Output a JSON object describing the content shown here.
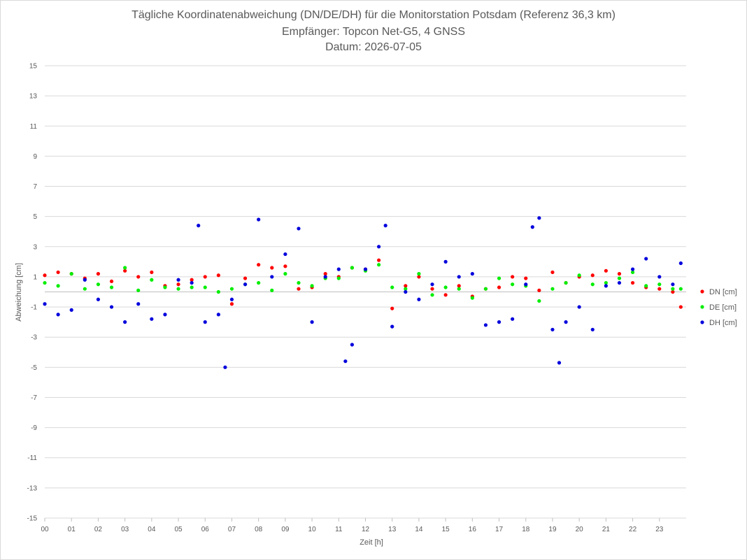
{
  "chart_data": {
    "type": "scatter",
    "title": "Tägliche Koordinatenabweichung (DN/DE/DH) für die Monitorstation Potsdam (Referenz 36,3 km)",
    "subtitle": "Empfänger: Topcon Net-G5, 4 GNSS",
    "date_line": "Datum: 2026-07-05",
    "xlabel": "Zeit [h]",
    "ylabel": "Abweichung [cm]",
    "xlim": [
      0,
      24
    ],
    "ylim": [
      -15,
      15
    ],
    "x_ticks": [
      0,
      1,
      2,
      3,
      4,
      5,
      6,
      7,
      8,
      9,
      10,
      11,
      12,
      13,
      14,
      15,
      16,
      17,
      18,
      19,
      20,
      21,
      22,
      23
    ],
    "x_tick_labels": [
      "00",
      "01",
      "02",
      "03",
      "04",
      "05",
      "06",
      "07",
      "08",
      "09",
      "10",
      "11",
      "12",
      "13",
      "14",
      "15",
      "16",
      "17",
      "18",
      "19",
      "20",
      "21",
      "22",
      "23"
    ],
    "y_ticks": [
      15,
      13,
      11,
      9,
      7,
      5,
      3,
      1,
      -1,
      -3,
      -5,
      -7,
      -9,
      -11,
      -13,
      -15
    ],
    "y_tick_labels": [
      "15",
      "13",
      "11",
      "9",
      "7",
      "5",
      "3",
      "1",
      "-1",
      "-3",
      "-5",
      "-7",
      "-9",
      "-11",
      "-13",
      "-15"
    ],
    "grid": "horizontal",
    "legend_position": "right",
    "series": [
      {
        "name": "DN [cm]",
        "color": "#ff0000",
        "x": [
          0.0,
          0.5,
          1.0,
          1.5,
          2.0,
          2.5,
          3.0,
          3.5,
          4.0,
          4.5,
          5.0,
          5.5,
          6.0,
          6.5,
          7.0,
          7.5,
          8.0,
          8.5,
          9.0,
          9.5,
          10.0,
          10.5,
          11.0,
          11.5,
          12.0,
          12.5,
          13.0,
          13.5,
          14.0,
          14.5,
          15.0,
          15.5,
          16.0,
          16.5,
          17.0,
          17.5,
          18.0,
          18.5,
          19.0,
          19.5,
          20.0,
          20.5,
          21.0,
          21.5,
          22.0,
          22.5,
          23.0,
          23.5,
          23.8
        ],
        "y": [
          1.1,
          1.3,
          1.2,
          0.9,
          1.2,
          0.7,
          1.4,
          1.0,
          1.3,
          0.4,
          0.5,
          0.8,
          1.0,
          1.1,
          -0.8,
          0.9,
          1.8,
          1.6,
          1.7,
          0.2,
          0.3,
          1.2,
          1.0,
          1.6,
          1.5,
          2.1,
          -1.1,
          0.4,
          1.0,
          0.2,
          -0.2,
          0.4,
          -0.3,
          0.2,
          0.3,
          1.0,
          0.9,
          0.1,
          1.3,
          0.6,
          1.0,
          1.1,
          1.4,
          1.2,
          0.6,
          0.3,
          0.2,
          0.0,
          -1.0
        ]
      },
      {
        "name": "DE [cm]",
        "color": "#00ee00",
        "x": [
          0.0,
          0.5,
          1.0,
          1.5,
          2.0,
          2.5,
          3.0,
          3.5,
          4.0,
          4.5,
          5.0,
          5.5,
          6.0,
          6.5,
          7.0,
          7.5,
          8.0,
          8.5,
          9.0,
          9.5,
          10.0,
          10.5,
          11.0,
          11.5,
          12.0,
          12.5,
          13.0,
          13.5,
          14.0,
          14.5,
          15.0,
          15.5,
          16.0,
          16.5,
          17.0,
          17.5,
          18.0,
          18.5,
          19.0,
          19.5,
          20.0,
          20.5,
          21.0,
          21.5,
          22.0,
          22.5,
          23.0,
          23.5,
          23.8
        ],
        "y": [
          0.6,
          0.4,
          1.2,
          0.2,
          0.5,
          0.3,
          1.6,
          0.1,
          0.8,
          0.3,
          0.2,
          0.3,
          0.3,
          0.0,
          0.2,
          0.5,
          0.6,
          0.1,
          1.2,
          0.6,
          0.4,
          0.9,
          0.9,
          1.6,
          1.4,
          1.8,
          0.3,
          0.2,
          1.2,
          -0.2,
          0.3,
          0.2,
          -0.4,
          0.2,
          0.9,
          0.5,
          0.4,
          -0.6,
          0.2,
          0.6,
          1.1,
          0.5,
          0.6,
          0.9,
          1.3,
          0.4,
          0.5,
          0.2,
          0.2
        ]
      },
      {
        "name": "DH [cm]",
        "color": "#0000dd",
        "x": [
          0.0,
          0.5,
          1.0,
          1.5,
          2.0,
          2.5,
          3.0,
          3.5,
          4.0,
          4.5,
          5.0,
          5.5,
          5.75,
          6.0,
          6.5,
          6.75,
          7.0,
          7.5,
          8.0,
          8.5,
          9.0,
          9.5,
          10.0,
          10.5,
          11.0,
          11.25,
          11.5,
          12.0,
          12.5,
          12.75,
          13.0,
          13.5,
          14.0,
          14.5,
          15.0,
          15.5,
          16.0,
          16.5,
          17.0,
          17.5,
          18.0,
          18.25,
          18.5,
          19.0,
          19.25,
          19.5,
          20.0,
          20.5,
          21.0,
          21.5,
          22.0,
          22.5,
          23.0,
          23.5,
          23.8
        ],
        "y": [
          -0.8,
          -1.5,
          -1.2,
          0.8,
          -0.5,
          -1.0,
          -2.0,
          -0.8,
          -1.8,
          -1.5,
          0.8,
          0.6,
          4.4,
          -2.0,
          -1.5,
          -5.0,
          -0.5,
          0.5,
          4.8,
          1.0,
          2.5,
          4.2,
          -2.0,
          1.0,
          1.5,
          -4.6,
          -3.5,
          1.5,
          3.0,
          4.4,
          -2.3,
          0.0,
          -0.5,
          0.5,
          2.0,
          1.0,
          1.2,
          -2.2,
          -2.0,
          -1.8,
          0.5,
          4.3,
          4.9,
          -2.5,
          -4.7,
          -2.0,
          -1.0,
          -2.5,
          0.4,
          0.6,
          1.5,
          2.2,
          1.0,
          0.5,
          1.9
        ]
      }
    ]
  }
}
